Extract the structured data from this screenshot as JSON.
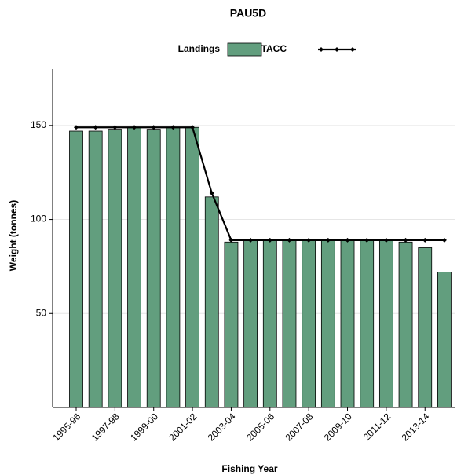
{
  "chart_data": {
    "type": "bar-line",
    "title": "PAU5D",
    "x_label": "Fishing Year",
    "y_label": "Weight (tonnes)",
    "categories": [
      "1995-96",
      null,
      "1997-98",
      null,
      "1999-00",
      null,
      "2001-02",
      null,
      "2003-04",
      null,
      "2005-06",
      null,
      "2007-08",
      null,
      "2009-10",
      null,
      "2011-12",
      null,
      "2013-14",
      null
    ],
    "series": [
      {
        "name": "Landings",
        "type": "bar",
        "color": "#629e7e",
        "values": [
          147,
          147,
          148,
          149,
          148,
          149,
          149,
          112,
          88,
          89,
          89,
          89,
          89,
          89,
          89,
          89,
          89,
          88,
          85,
          72
        ]
      },
      {
        "name": "TACC",
        "type": "line",
        "color": "#000000",
        "values": [
          149,
          149,
          149,
          149,
          149,
          149,
          149,
          114,
          89,
          89,
          89,
          89,
          89,
          89,
          89,
          89,
          89,
          89,
          89,
          89
        ]
      }
    ],
    "ylim": [
      0,
      180
    ],
    "yticks": [
      50,
      100,
      150
    ],
    "grid": true
  }
}
